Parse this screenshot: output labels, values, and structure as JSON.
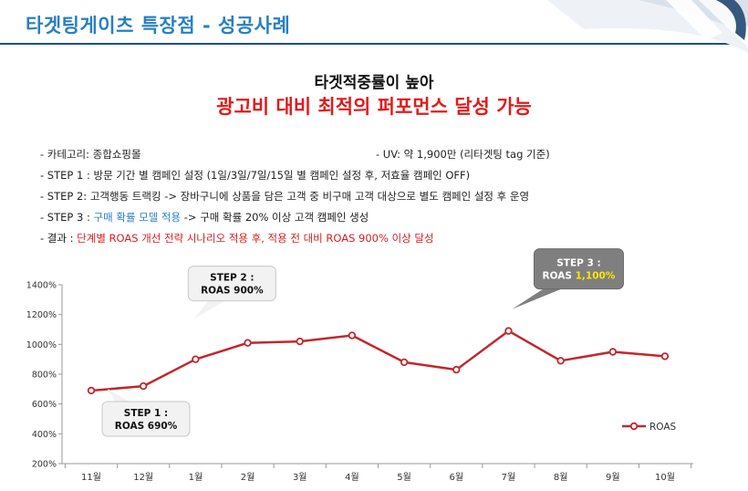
{
  "header": {
    "title": "타겟팅게이츠 특장점 - 성공사례"
  },
  "headline": {
    "line1": "타겟적중률이 높아",
    "line2": "광고비 대비 최적의 퍼포먼스 달성 가능"
  },
  "bullets": {
    "category": "- 카테고리: 종합쇼핑몰",
    "uv": "- UV: 약 1,900만 (리타겟팅 tag 기준)",
    "step1": "- STEP 1 : 방문 기간 별 캠페인 설정 (1일/3일/7일/15일 별 캠페인 설정 후, 저효율 캠페인 OFF)",
    "step2": "- STEP 2: 고객행동 트랙킹 -> 장바구니에 상품을 담은 고객 중 비구매 고객 대상으로 별도 캠페인 설정 후 운영",
    "step3_prefix": "- STEP 3 : ",
    "step3_highlight": "구매 확률 모델 적용",
    "step3_suffix": " -> 구매 확률 20% 이상 고객 캠페인 생성",
    "result_prefix": "- 결과 : ",
    "result_text": "단계별 ROAS 개선 전략 시나리오 적용 후, 적용 전 대비 ROAS 900% 이상 달성"
  },
  "colors": {
    "title_blue": "#2a7fc0",
    "accent_red": "#e01b1b",
    "series_red": "#c0282d"
  },
  "chart_data": {
    "type": "line",
    "title": "",
    "xlabel": "",
    "ylabel": "",
    "categories": [
      "11월",
      "12월",
      "1월",
      "2월",
      "3월",
      "4월",
      "5월",
      "6월",
      "7월",
      "8월",
      "9월",
      "10월"
    ],
    "series": [
      {
        "name": "ROAS",
        "values": [
          690,
          720,
          900,
          1010,
          1020,
          1060,
          880,
          830,
          1090,
          890,
          950,
          920
        ]
      }
    ],
    "ylim": [
      200,
      1400
    ],
    "yticks": [
      200,
      400,
      600,
      800,
      1000,
      1200,
      1400
    ],
    "ytick_labels": [
      "200%",
      "400%",
      "600%",
      "800%",
      "1000%",
      "1200%",
      "1400%"
    ],
    "legend": "ROAS",
    "legend_position": "right",
    "callouts": [
      {
        "line1": "STEP 1 :",
        "line2": "ROAS 690%",
        "highlight": "",
        "index": 0,
        "style": "light"
      },
      {
        "line1": "STEP 2 :",
        "line2": "ROAS 900%",
        "highlight": "",
        "index": 2,
        "style": "light"
      },
      {
        "line1": "STEP 3 :",
        "line2": "ROAS ",
        "highlight": "1,100%",
        "index": 8,
        "style": "dark"
      }
    ]
  }
}
